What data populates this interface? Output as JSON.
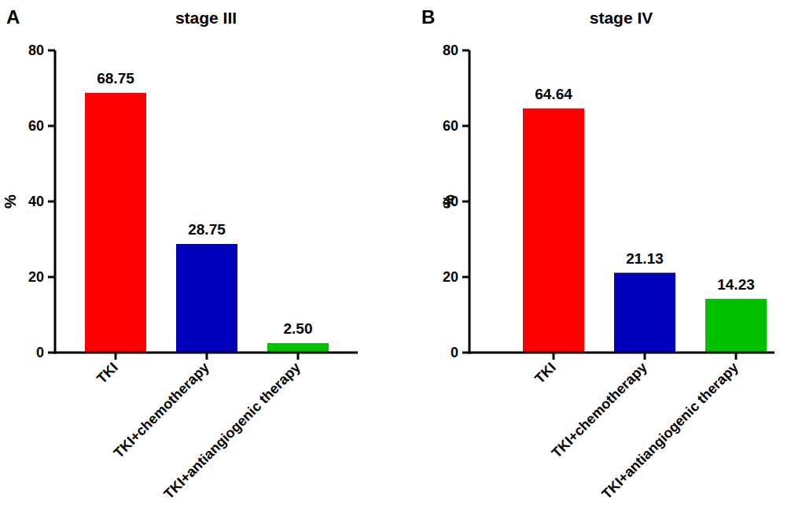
{
  "chart_data": [
    {
      "type": "bar",
      "title": "stage III",
      "annotations": [
        "A"
      ],
      "y_label": "%",
      "categories": [
        "TKI",
        "TKI+chemotherapy",
        "TKI+antiangiogenic therapy"
      ],
      "values": [
        68.75,
        28.75,
        2.5
      ],
      "value_labels": [
        "68.75",
        "28.75",
        "2.50"
      ],
      "colors": [
        "#ff0000",
        "#0000bb",
        "#00c000"
      ],
      "ylim": [
        0,
        80
      ],
      "yticks": [
        0,
        20,
        40,
        60,
        80
      ],
      "grid": false,
      "data_labels": true
    },
    {
      "type": "bar",
      "title": "stage IV",
      "annotations": [
        "B"
      ],
      "y_label": "%",
      "categories": [
        "TKI",
        "TKI+chemotherapy",
        "TKI+antiangiogenic therapy"
      ],
      "values": [
        64.64,
        21.13,
        14.23
      ],
      "value_labels": [
        "64.64",
        "21.13",
        "14.23"
      ],
      "colors": [
        "#ff0000",
        "#0000bb",
        "#00c000"
      ],
      "ylim": [
        0,
        80
      ],
      "yticks": [
        0,
        20,
        40,
        60,
        80
      ],
      "grid": false,
      "data_labels": true
    }
  ]
}
